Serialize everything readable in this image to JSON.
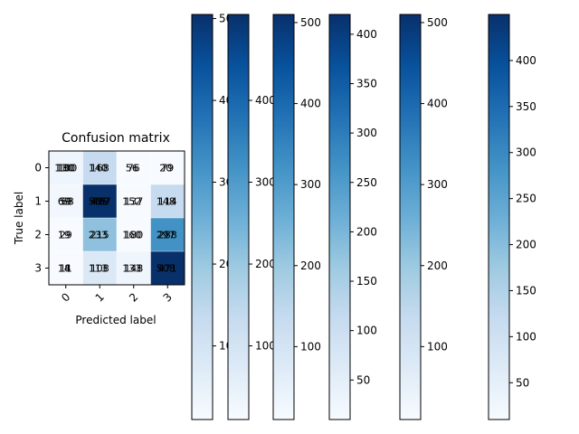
{
  "chart_data": {
    "type": "heatmap",
    "title": "Confusion matrix",
    "xlabel": "Predicted label",
    "ylabel": "True label",
    "x_tick_labels": [
      "0",
      "1",
      "2",
      "3"
    ],
    "y_tick_labels": [
      "0",
      "1",
      "2",
      "3"
    ],
    "colormap": "Blues",
    "cell_colors": [
      [
        "#eef5fc",
        "#c6dbef",
        "#f7fbff",
        "#f7fbff"
      ],
      [
        "#f2f7fd",
        "#08306b",
        "#f7fbff",
        "#c6dbef"
      ],
      [
        "#f7fbff",
        "#8fc1de",
        "#f7fbff",
        "#4292c6"
      ],
      [
        "#f7fbff",
        "#dbe9f6",
        "#eef5fc",
        "#08306b"
      ]
    ],
    "cell_text_overlaps": [
      [
        [
          "180",
          "130",
          "100"
        ],
        [
          "168",
          "140"
        ],
        [
          "76",
          "56"
        ],
        [
          "79",
          "20"
        ]
      ],
      [
        [
          "59",
          "69",
          "68"
        ],
        [
          "499",
          "505",
          "467"
        ],
        [
          "137",
          "152"
        ],
        [
          "114",
          "148"
        ]
      ],
      [
        [
          "29",
          "19"
        ],
        [
          "215",
          "233"
        ],
        [
          "180",
          "160"
        ],
        [
          "288",
          "297"
        ]
      ],
      [
        [
          "11",
          "14",
          "8"
        ],
        [
          "108",
          "113"
        ],
        [
          "148",
          "133"
        ],
        [
          "471",
          "508"
        ]
      ]
    ],
    "colorbars": [
      {
        "ticks": [
          100,
          200,
          300,
          400,
          500
        ],
        "vmin": 10,
        "vmax": 505
      },
      {
        "ticks": [
          100,
          200,
          300,
          400
        ],
        "vmin": 10,
        "vmax": 505
      },
      {
        "ticks": [
          100,
          200,
          300,
          400,
          500
        ],
        "vmin": 10,
        "vmax": 510
      },
      {
        "ticks": [
          50,
          100,
          150,
          200,
          250,
          300,
          350,
          400
        ],
        "vmin": 10,
        "vmax": 420
      },
      {
        "ticks": [
          100,
          200,
          300,
          400,
          500
        ],
        "vmin": 10,
        "vmax": 510
      },
      {
        "ticks": [
          50,
          100,
          150,
          200,
          250,
          300,
          350,
          400
        ],
        "vmin": 10,
        "vmax": 450
      }
    ]
  }
}
